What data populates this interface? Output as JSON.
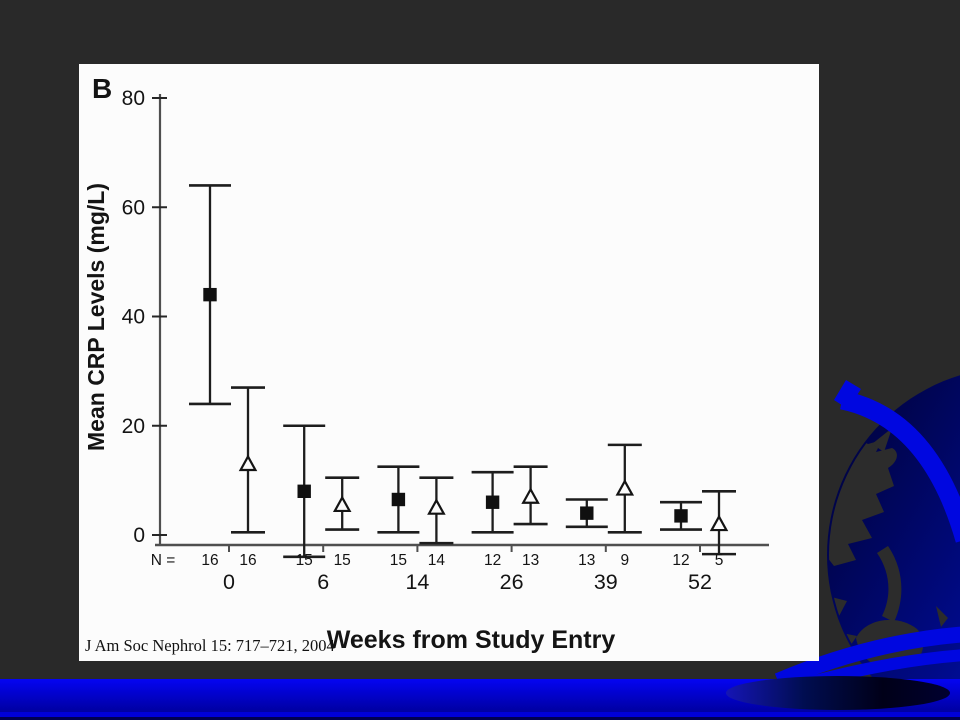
{
  "slide": {
    "background_color": "#292929",
    "accent_blue": "#0007e0",
    "bottom_bar_top_color": "#0404f2",
    "bottom_bar_bottom_color": "#0000a0"
  },
  "figure": {
    "citation": "J Am Soc Nephrol 15: 717–721, 2004"
  },
  "chart_data": {
    "type": "scatter",
    "subtype": "errorbar",
    "panel_label": "B",
    "title": "",
    "xlabel": "Weeks from Study Entry",
    "ylabel": "Mean CRP Levels (mg/L)",
    "ylim": [
      0,
      80
    ],
    "yticks": [
      0,
      20,
      40,
      60,
      80
    ],
    "grid": "off",
    "legend_position": "none",
    "n_row_label": "N =",
    "weeks": [
      0,
      6,
      14,
      26,
      39,
      52
    ],
    "series": [
      {
        "name": "filled-square-series",
        "marker": "filled-square",
        "means": [
          44,
          8,
          6.5,
          6,
          4,
          3.5
        ],
        "upper": [
          64,
          20,
          12.5,
          11.5,
          6.5,
          6
        ],
        "lower": [
          24,
          -4,
          0.5,
          0.5,
          1.5,
          1
        ],
        "n": [
          16,
          15,
          15,
          12,
          13,
          12
        ]
      },
      {
        "name": "open-triangle-series",
        "marker": "open-triangle",
        "means": [
          13,
          5.5,
          5,
          7,
          8.5,
          2
        ],
        "upper": [
          27,
          10.5,
          10.5,
          12.5,
          16.5,
          8
        ],
        "lower": [
          0.5,
          1,
          -1.5,
          2,
          0.5,
          -3.5
        ],
        "n": [
          16,
          15,
          14,
          13,
          9,
          5
        ]
      }
    ]
  }
}
